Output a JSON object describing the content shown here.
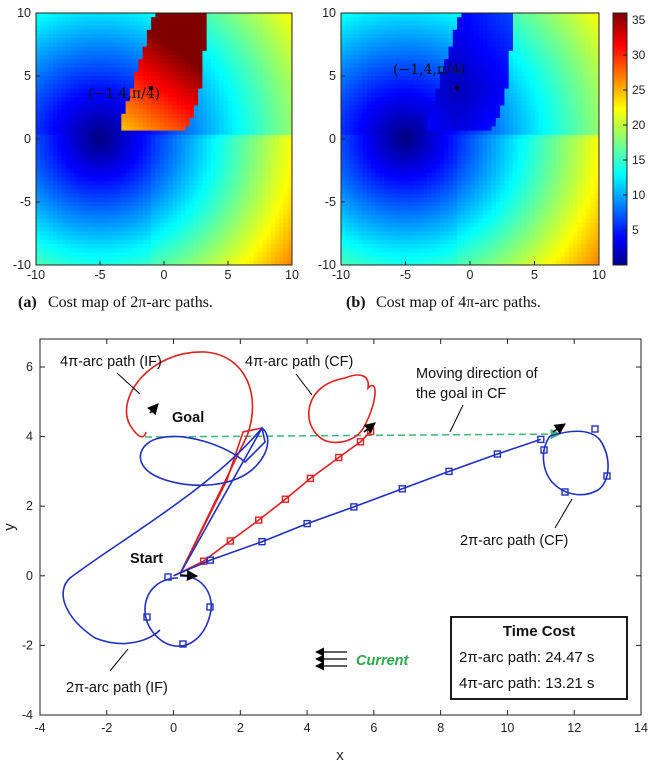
{
  "captions": {
    "a_label": "(a)",
    "a_text": "Cost map of 2π-arc paths.",
    "b_label": "(b)",
    "b_text": "Cost map of 4π-arc paths."
  },
  "colorbar": {
    "ticks": [
      "35",
      "30",
      "25",
      "20",
      "15",
      "10",
      "5"
    ]
  },
  "chart_data": [
    {
      "type": "heatmap",
      "title": "",
      "xlim": [
        -10,
        10
      ],
      "ylim": [
        -10,
        10
      ],
      "xticks": [
        "-10",
        "-5",
        "0",
        "5",
        "10"
      ],
      "yticks": [
        "10",
        "5",
        "0",
        "-5",
        "-10"
      ],
      "point_label": "(−1,4,π/4)",
      "point": [
        -1,
        4
      ],
      "colormap": "jet",
      "clim": [
        0,
        36
      ]
    },
    {
      "type": "heatmap",
      "title": "",
      "xlim": [
        -10,
        10
      ],
      "ylim": [
        -10,
        10
      ],
      "xticks": [
        "-10",
        "-5",
        "0",
        "5",
        "10"
      ],
      "yticks": [
        "10",
        "5",
        "0",
        "-5",
        "-10"
      ],
      "point_label": "(−1,4,π/4)",
      "point": [
        -1,
        4
      ],
      "colormap": "jet",
      "clim": [
        0,
        36
      ]
    },
    {
      "type": "line",
      "xlabel": "x",
      "ylabel": "y",
      "xlim": [
        -4,
        14
      ],
      "ylim": [
        -4,
        6
      ],
      "xticks": [
        "-4",
        "-2",
        "0",
        "2",
        "4",
        "6",
        "8",
        "10",
        "12",
        "14"
      ],
      "yticks": [
        "6",
        "4",
        "2",
        "0",
        "-2",
        "-4"
      ],
      "series": [
        {
          "name": "4π-arc path (IF)",
          "color": "#e02020",
          "points": [
            [
              0.1,
              0.05
            ],
            [
              2.5,
              4.1
            ]
          ]
        },
        {
          "name": "4π-arc path (CF)",
          "color": "#e02020",
          "points": [
            [
              0,
              0
            ],
            [
              0.9,
              0.42
            ],
            [
              1.7,
              1.0
            ],
            [
              2.55,
              1.6
            ],
            [
              3.35,
              2.2
            ],
            [
              4.1,
              2.8
            ],
            [
              4.95,
              3.4
            ],
            [
              5.6,
              3.85
            ],
            [
              5.9,
              4.15
            ]
          ]
        },
        {
          "name": "2π-arc path (IF)",
          "color": "#2030c0",
          "points": [
            [
              0,
              0
            ]
          ]
        },
        {
          "name": "2π-arc path (CF)",
          "color": "#2030c0",
          "points": [
            [
              0,
              0
            ],
            [
              1.1,
              0.45
            ],
            [
              2.65,
              0.98
            ],
            [
              4.0,
              1.5
            ],
            [
              5.4,
              1.98
            ],
            [
              6.85,
              2.5
            ],
            [
              8.25,
              3.0
            ],
            [
              9.7,
              3.5
            ],
            [
              11.0,
              3.92
            ]
          ]
        }
      ],
      "goal_direction_line": {
        "from": [
          -1,
          3.95
        ],
        "to": [
          11.2,
          4.05
        ],
        "color": "#3cb878"
      },
      "annotations": {
        "goal": "Goal",
        "start": "Start",
        "moving_direction_1": "Moving direction of",
        "moving_direction_2": "the goal in CF",
        "current": "Current",
        "red_if": "4π-arc path (IF)",
        "red_cf": "4π-arc path (CF)",
        "blue_if": "2π-arc path (IF)",
        "blue_cf": "2π-arc path (CF)"
      },
      "legend": {
        "title": "Time Cost",
        "line1": "2π-arc path: 24.47 s",
        "line2": "4π-arc path: 13.21 s"
      }
    }
  ]
}
